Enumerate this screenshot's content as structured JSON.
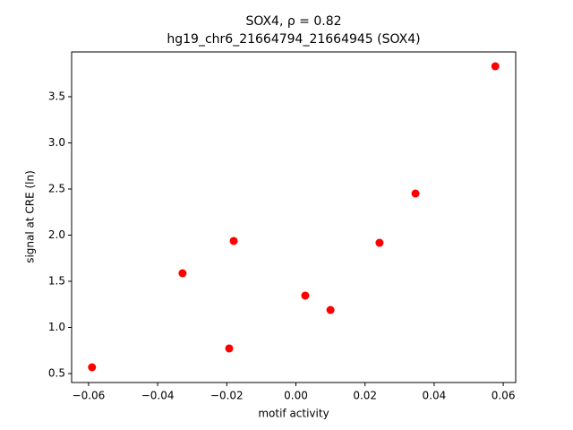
{
  "chart_data": {
    "type": "scatter",
    "title": "SOX4, ρ = 0.82",
    "subtitle": "hg19_chr6_21664794_21664945 (SOX4)",
    "x_label": "motif activity",
    "y_label": "signal at CRE (ln)",
    "color": "#ff0000",
    "x": [
      -0.059,
      -0.0328,
      -0.0193,
      -0.018,
      0.0027,
      0.01,
      0.0242,
      0.0346,
      0.0577
    ],
    "values": [
      0.568,
      1.587,
      0.772,
      1.937,
      1.345,
      1.189,
      1.917,
      2.451,
      3.83
    ],
    "xlim": [
      -0.0649,
      0.0636
    ],
    "ylim": [
      0.403,
      3.985
    ],
    "xticks": [
      {
        "value": -0.06,
        "label": "−0.06"
      },
      {
        "value": -0.04,
        "label": "−0.04"
      },
      {
        "value": -0.02,
        "label": "−0.02"
      },
      {
        "value": 0,
        "label": "0.00"
      },
      {
        "value": 0.02,
        "label": "0.02"
      },
      {
        "value": 0.04,
        "label": "0.04"
      },
      {
        "value": 0.06,
        "label": "0.06"
      }
    ],
    "yticks": [
      0.5,
      {
        "value": 1,
        "label": "1.0"
      },
      1.5,
      {
        "value": 2,
        "label": "2.0"
      },
      2.5,
      {
        "value": 3,
        "label": "3.0"
      },
      3.5
    ]
  }
}
